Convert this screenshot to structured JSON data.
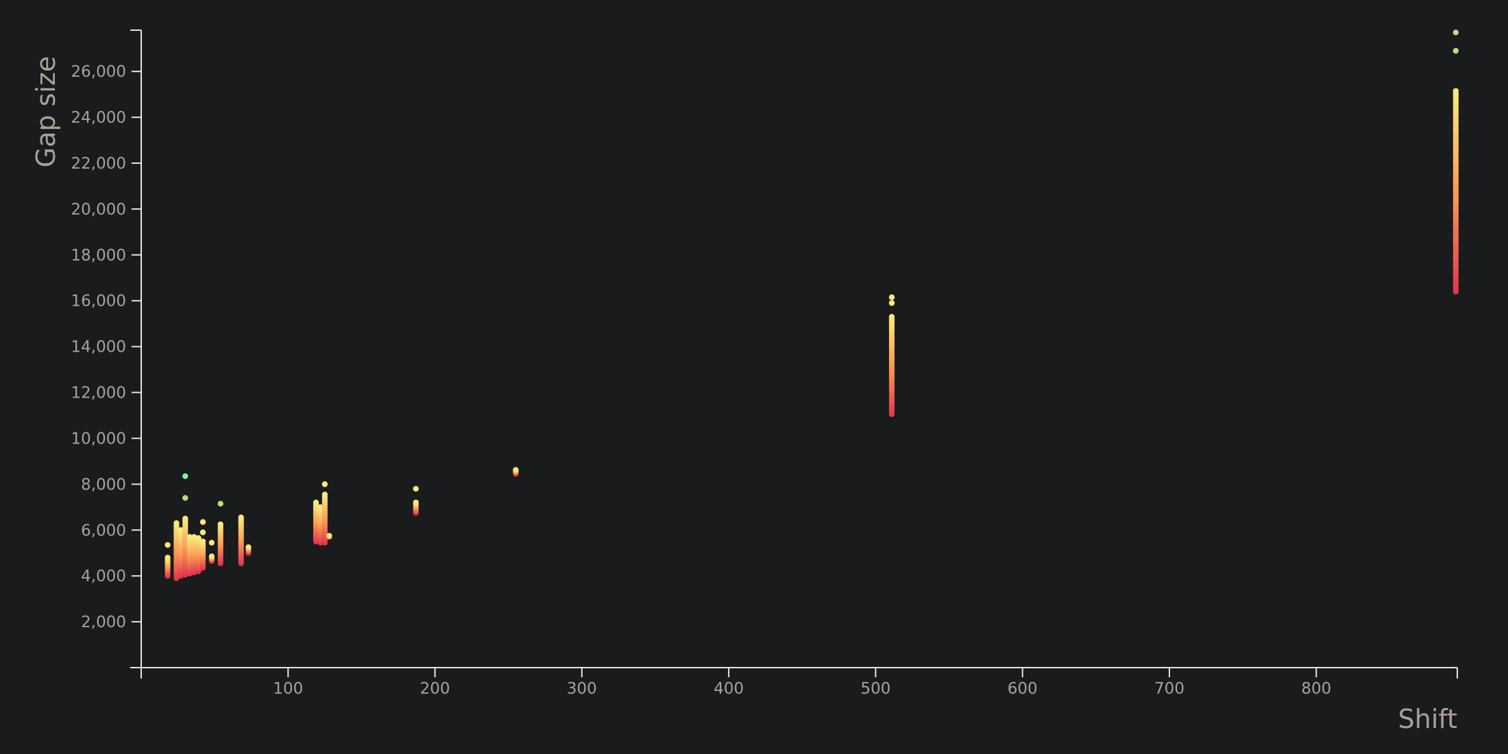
{
  "chart_data": {
    "type": "scatter",
    "title": "",
    "xlabel": "Shift",
    "ylabel": "Gap size",
    "xlim": [
      0,
      896
    ],
    "ylim": [
      0,
      27800
    ],
    "x_ticks": [
      100,
      200,
      300,
      400,
      500,
      600,
      700,
      800
    ],
    "y_ticks": [
      2000,
      4000,
      6000,
      8000,
      10000,
      12000,
      14000,
      16000,
      18000,
      20000,
      22000,
      24000,
      26000
    ],
    "x_tick_labels": [
      "100",
      "200",
      "300",
      "400",
      "500",
      "600",
      "700",
      "800"
    ],
    "y_tick_labels": [
      "2,000",
      "4,000",
      "6,000",
      "8,000",
      "10,000",
      "12,000",
      "14,000",
      "16,000",
      "18,000",
      "20,000",
      "22,000",
      "24,000",
      "26,000"
    ],
    "grid": false,
    "legend": "none",
    "colors": {
      "background": "#1a1b1d",
      "axis": "#e6e6e6",
      "text": "#a8a296",
      "low": "#e2364f",
      "mid": "#fb9b53",
      "high": "#f8e97a",
      "outlier_green": "#b5e07b",
      "outlier_teal": "#7df5a4"
    },
    "clusters": [
      {
        "x": 18,
        "ymin": 4000,
        "ymax": 4800,
        "extra": [
          5350
        ]
      },
      {
        "x": 24,
        "ymin": 3900,
        "ymax": 6300,
        "extra": []
      },
      {
        "x": 27,
        "ymin": 4000,
        "ymax": 6000,
        "extra": []
      },
      {
        "x": 30,
        "ymin": 4050,
        "ymax": 6500,
        "extra": [
          7400,
          8350
        ]
      },
      {
        "x": 33,
        "ymin": 4100,
        "ymax": 5700,
        "extra": []
      },
      {
        "x": 36,
        "ymin": 4150,
        "ymax": 5700,
        "extra": []
      },
      {
        "x": 39,
        "ymin": 4200,
        "ymax": 5650,
        "extra": []
      },
      {
        "x": 42,
        "ymin": 4350,
        "ymax": 5500,
        "extra": [
          5900,
          6350
        ]
      },
      {
        "x": 48,
        "ymin": 4650,
        "ymax": 4850,
        "extra": [
          5450
        ]
      },
      {
        "x": 54,
        "ymin": 4550,
        "ymax": 6250,
        "extra": [
          7150
        ]
      },
      {
        "x": 68,
        "ymin": 4550,
        "ymax": 6550,
        "extra": []
      },
      {
        "x": 73,
        "ymin": 5000,
        "ymax": 5250,
        "extra": []
      },
      {
        "x": 119,
        "ymin": 5500,
        "ymax": 7200,
        "extra": []
      },
      {
        "x": 122,
        "ymin": 5450,
        "ymax": 7000,
        "extra": []
      },
      {
        "x": 125,
        "ymin": 5450,
        "ymax": 7550,
        "extra": [
          8000
        ]
      },
      {
        "x": 128,
        "ymin": 5700,
        "ymax": 5750,
        "extra": []
      },
      {
        "x": 187,
        "ymin": 6750,
        "ymax": 7200,
        "extra": [
          7800
        ]
      },
      {
        "x": 255,
        "ymin": 8450,
        "ymax": 8620,
        "extra": []
      },
      {
        "x": 511,
        "ymin": 11050,
        "ymax": 15300,
        "extra": [
          15900,
          16150
        ]
      },
      {
        "x": 895,
        "ymin": 16400,
        "ymax": 25150,
        "extra": [
          26900,
          27700
        ]
      }
    ]
  }
}
